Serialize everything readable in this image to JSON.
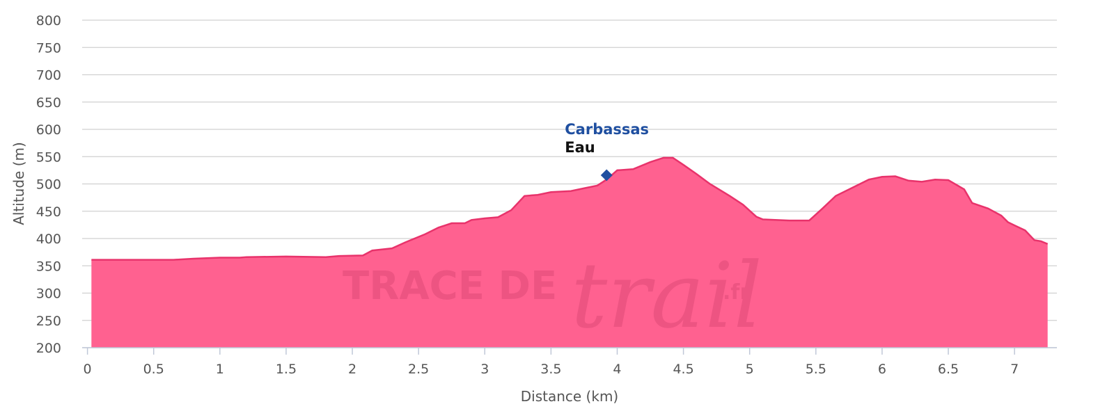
{
  "chart_data": {
    "type": "area",
    "x_label": "Distance (km)",
    "y_label": "Altitude (m)",
    "x": [
      0.03,
      0.65,
      0.8,
      1.0,
      1.15,
      1.2,
      1.5,
      1.8,
      1.9,
      2.08,
      2.15,
      2.3,
      2.4,
      2.55,
      2.65,
      2.75,
      2.85,
      2.9,
      3.0,
      3.1,
      3.2,
      3.3,
      3.4,
      3.5,
      3.65,
      3.75,
      3.85,
      3.92,
      4.0,
      4.12,
      4.25,
      4.35,
      4.42,
      4.5,
      4.6,
      4.7,
      4.85,
      4.95,
      5.05,
      5.1,
      5.3,
      5.45,
      5.55,
      5.65,
      5.75,
      5.9,
      6.0,
      6.1,
      6.2,
      6.3,
      6.4,
      6.5,
      6.62,
      6.68,
      6.8,
      6.9,
      6.95,
      7.0,
      7.08,
      7.15,
      7.2,
      7.25
    ],
    "series": [
      {
        "name": "Altitude",
        "color": "#e8336b",
        "fill": "#ff6190",
        "values": [
          361,
          361,
          363,
          365,
          365,
          366,
          367,
          366,
          368,
          369,
          378,
          382,
          393,
          408,
          420,
          428,
          428,
          434,
          437,
          439,
          452,
          478,
          480,
          485,
          487,
          492,
          497,
          508,
          525,
          527,
          540,
          548,
          548,
          535,
          518,
          500,
          478,
          462,
          440,
          435,
          433,
          433,
          455,
          478,
          490,
          508,
          513,
          514,
          506,
          504,
          508,
          507,
          490,
          465,
          455,
          442,
          430,
          424,
          415,
          397,
          395,
          390
        ]
      }
    ],
    "annotation": {
      "x": 3.92,
      "y": 516,
      "title": "Carbassas",
      "label": "Eau",
      "color": "#1f4fa0"
    },
    "watermark": {
      "main": "TRACE DE",
      "script": "trail",
      "suffix": ".fr"
    },
    "xlim": [
      -0.04,
      7.32
    ],
    "xticks": [
      0,
      0.5,
      1,
      1.5,
      2,
      2.5,
      3,
      3.5,
      4,
      4.5,
      5,
      5.5,
      6,
      6.5,
      7
    ],
    "ylim": [
      200,
      800
    ],
    "yticks": [
      200,
      250,
      300,
      350,
      400,
      450,
      500,
      550,
      600,
      650,
      700,
      750,
      800
    ],
    "grid": true
  }
}
